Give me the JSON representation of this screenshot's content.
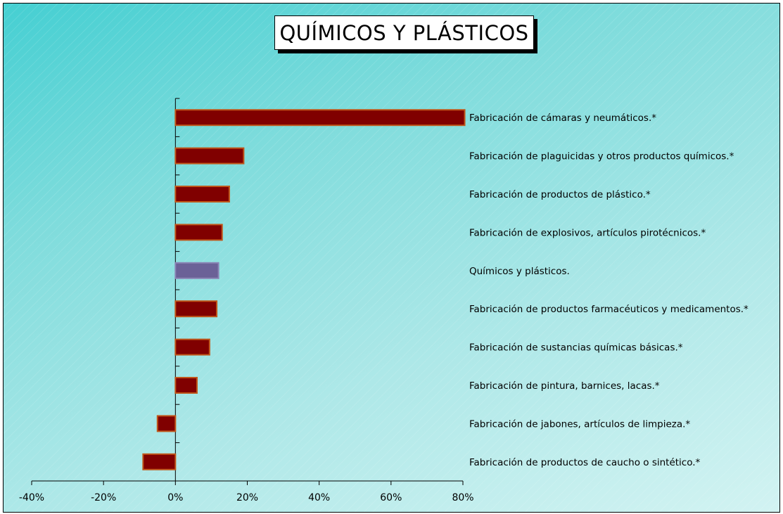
{
  "chart_data": {
    "type": "bar",
    "orientation": "horizontal",
    "title": "QUÍMICOS Y PLÁSTICOS",
    "categories": [
      "Fabricación de cámaras y neumáticos.*",
      "Fabricación de plaguicidas y otros productos químicos.*",
      "Fabricación de productos de plástico.*",
      "Fabricación de explosivos, artículos pirotécnicos.*",
      "Químicos y plásticos.",
      "Fabricación de productos farmacéuticos y medicamentos.*",
      "Fabricación de sustancias químicas básicas.*",
      "Fabricación de pintura, barnices, lacas.*",
      "Fabricación de jabones, artículos de limpieza.*",
      "Fabricación de productos de caucho o sintético.*"
    ],
    "values": [
      80.5,
      19,
      15,
      13,
      12,
      11.5,
      9.5,
      6,
      -5,
      -9
    ],
    "highlight_category": "Químicos y plásticos.",
    "xlim": [
      -40,
      80
    ],
    "xticks": [
      -40,
      -20,
      0,
      20,
      40,
      60,
      80
    ],
    "tick_labels": [
      "-40%",
      "-20%",
      "0%",
      "20%",
      "40%",
      "60%",
      "80%"
    ],
    "xlabel": "",
    "ylabel": "",
    "grid": false,
    "legend": "none",
    "colors": {
      "bar": "#800000",
      "bar_border": "#c0561a",
      "highlight_bar": "#6b6197",
      "highlight_border": "#8a84b5",
      "axis": "#000000",
      "background_start": "#45cfd2",
      "background_end": "#d2f3f2"
    }
  }
}
